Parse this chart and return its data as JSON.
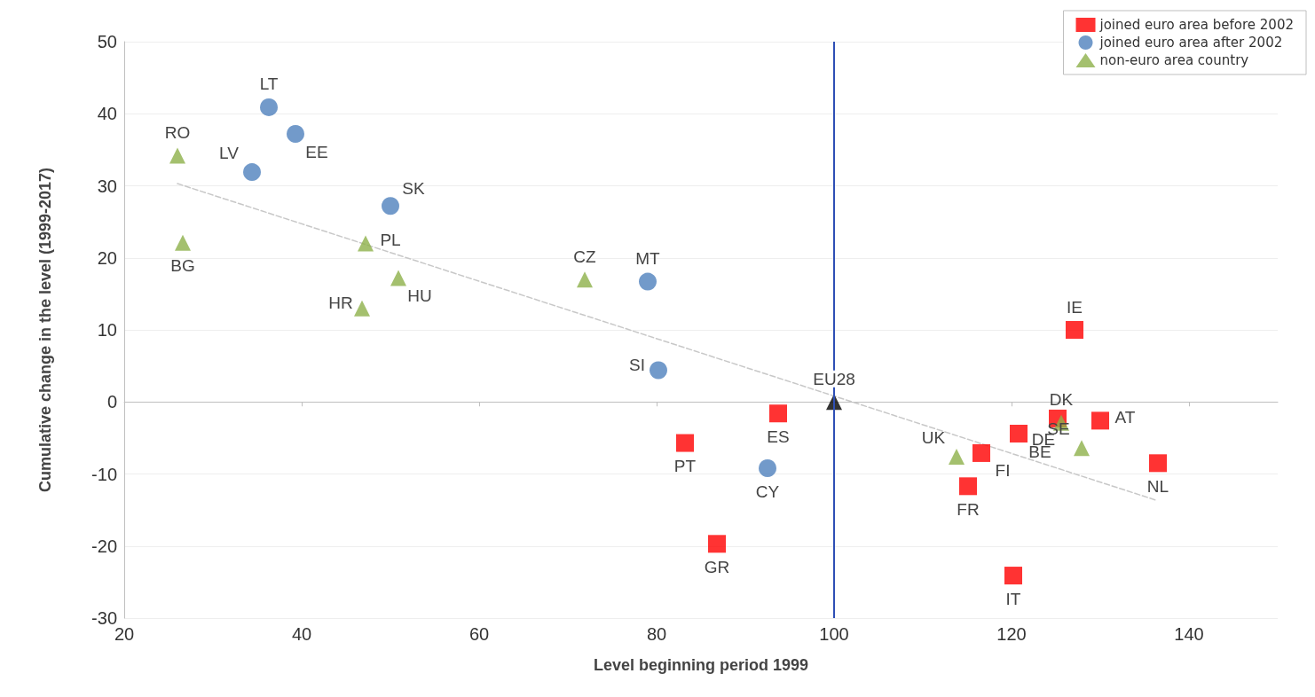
{
  "chart_data": {
    "type": "scatter",
    "xlabel": "Level beginning period 1999",
    "ylabel": "Cumulative change in the level (1999-2017)",
    "xlim": [
      20,
      150
    ],
    "xticks": [
      20,
      40,
      60,
      80,
      100,
      120,
      140
    ],
    "ylim": [
      -30,
      50
    ],
    "yticks": [
      -30,
      -20,
      -10,
      0,
      10,
      20,
      30,
      40,
      50
    ],
    "grid": "y",
    "legend": "top right",
    "series": [
      {
        "name": "joined euro area before 2002",
        "color": "#ff0000",
        "marker": "square",
        "x": [
          83.2,
          93.7,
          86.8,
          127.1,
          125.2,
          130.0,
          120.8,
          116.6,
          115.1,
          136.5,
          120.2
        ],
        "values": [
          -5.7,
          -1.6,
          -19.7,
          10.0,
          -2.3,
          -2.6,
          -4.4,
          -7.1,
          -11.7,
          -8.5,
          -24.1
        ]
      },
      {
        "name": "joined euro area after 2002",
        "color": "#4f81bd",
        "marker": "circle",
        "x": [
          36.3,
          39.3,
          34.4,
          50.0,
          79.0,
          80.2,
          92.5
        ],
        "values": [
          40.9,
          37.2,
          31.9,
          27.2,
          16.7,
          4.4,
          -9.2
        ]
      },
      {
        "name": "non-euro area country",
        "color": "#8db04a",
        "marker": "triangle",
        "x": [
          26.0,
          26.6,
          47.2,
          50.9,
          46.8,
          71.9,
          125.6,
          127.9,
          113.8
        ],
        "values": [
          34.2,
          22.1,
          22.0,
          17.2,
          13.0,
          17.0,
          -2.9,
          -6.4,
          -7.6
        ]
      },
      {
        "color": "#000000",
        "marker": "triangle",
        "x": [
          100
        ],
        "values": [
          0
        ]
      },
      {
        "type": "line",
        "color": "#c8c8c8",
        "line_style": "dashed",
        "marker": "none",
        "x": [
          26.0,
          136.2
        ],
        "values": [
          30.3,
          -13.6
        ]
      }
    ],
    "ref_lines": [
      {
        "axis": "x",
        "value": 100,
        "color": "#2e4fb5"
      }
    ],
    "annotations": [
      {
        "text": "PT",
        "x": 83.2,
        "y": -5.7
      },
      {
        "text": "ES",
        "x": 93.7,
        "y": -1.6
      },
      {
        "text": "GR",
        "x": 86.8,
        "y": -19.7
      },
      {
        "text": "IE",
        "x": 127.1,
        "y": 10.0
      },
      {
        "text": "DE",
        "x": 125.2,
        "y": -2.3
      },
      {
        "text": "AT",
        "x": 130.0,
        "y": -2.6
      },
      {
        "text": "BE",
        "x": 120.8,
        "y": -4.4
      },
      {
        "text": "FI",
        "x": 116.6,
        "y": -7.1
      },
      {
        "text": "FR",
        "x": 115.1,
        "y": -11.7
      },
      {
        "text": "NL",
        "x": 136.5,
        "y": -8.5
      },
      {
        "text": "IT",
        "x": 120.2,
        "y": -24.1
      },
      {
        "text": "LT",
        "x": 36.3,
        "y": 40.9
      },
      {
        "text": "EE",
        "x": 39.3,
        "y": 37.2
      },
      {
        "text": "LV",
        "x": 34.4,
        "y": 31.9
      },
      {
        "text": "SK",
        "x": 50.0,
        "y": 27.2
      },
      {
        "text": "MT",
        "x": 79.0,
        "y": 16.7
      },
      {
        "text": "SI",
        "x": 80.2,
        "y": 4.4
      },
      {
        "text": "CY",
        "x": 92.5,
        "y": -9.2
      },
      {
        "text": "RO",
        "x": 26.0,
        "y": 34.2
      },
      {
        "text": "BG",
        "x": 26.6,
        "y": 22.1
      },
      {
        "text": "PL",
        "x": 47.2,
        "y": 22.0
      },
      {
        "text": "HU",
        "x": 50.9,
        "y": 17.2
      },
      {
        "text": "HR",
        "x": 46.8,
        "y": 13.0
      },
      {
        "text": "CZ",
        "x": 71.9,
        "y": 17.0
      },
      {
        "text": "DK",
        "x": 125.6,
        "y": -2.9
      },
      {
        "text": "SE",
        "x": 127.9,
        "y": -6.4
      },
      {
        "text": "UK",
        "x": 113.8,
        "y": -7.6
      },
      {
        "text": "EU28",
        "x": 100,
        "y": 0
      }
    ]
  }
}
